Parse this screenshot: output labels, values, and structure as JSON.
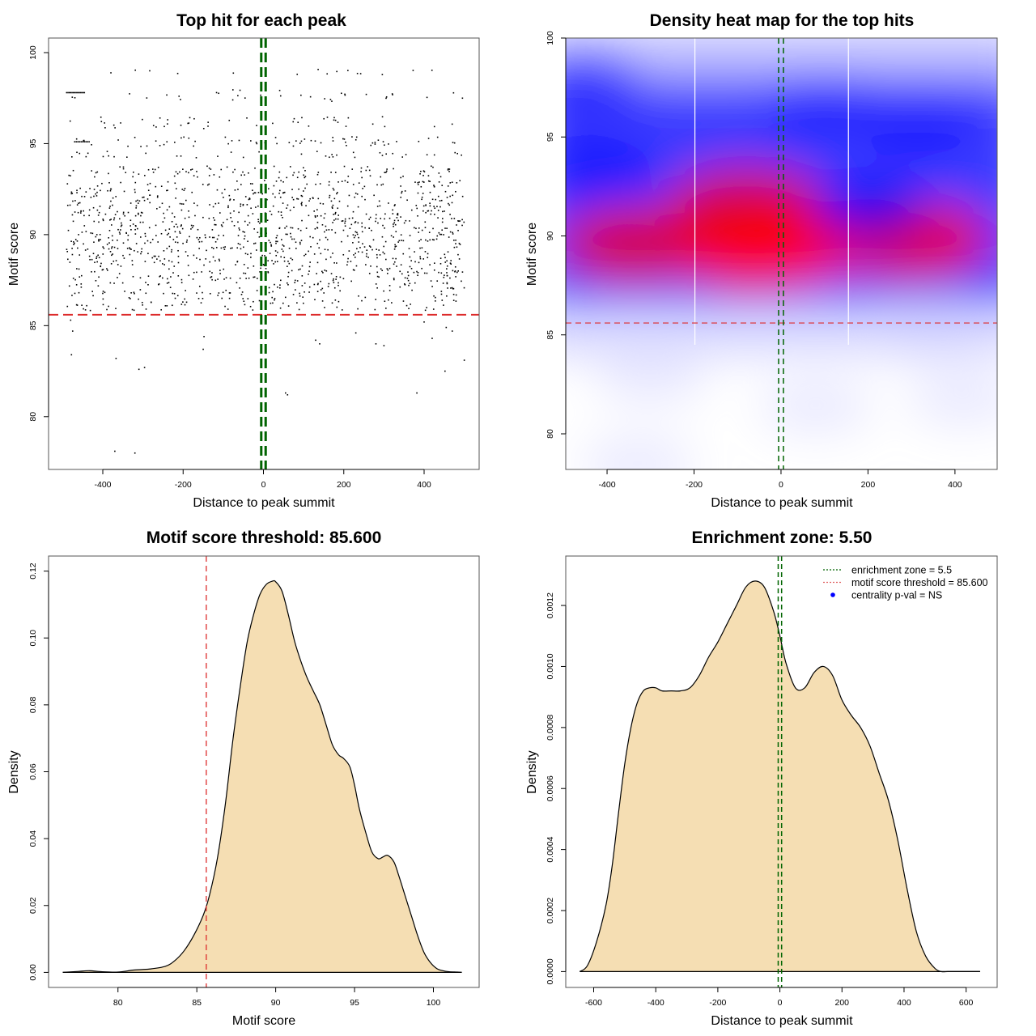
{
  "chart_data": [
    {
      "id": "scatter",
      "type": "scatter",
      "title": "Top hit for each peak",
      "xlabel": "Distance to peak summit",
      "ylabel": "Motif score",
      "xlim": [
        -535,
        537
      ],
      "ylim": [
        77.1,
        100.8
      ],
      "xticks": [
        -400,
        -200,
        0,
        200,
        400
      ],
      "xtick_labels": [
        "-400",
        "-200",
        "0",
        "200",
        "400"
      ],
      "yticks": [
        80,
        85,
        90,
        95,
        100
      ],
      "ytick_labels": [
        "80",
        "85",
        "90",
        "95",
        "100"
      ],
      "grid": false,
      "point_color": "#000000",
      "threshold_line": {
        "axis": "y",
        "value": 85.6,
        "color": "#dd2b2b",
        "style": "dashed"
      },
      "enrichment_lines": {
        "axis": "x",
        "values": [
          -5.5,
          5.5
        ],
        "color": "#006400",
        "style": "dashed"
      },
      "score_levels": [
        98.9,
        97.8,
        97.5,
        96.3,
        96.0,
        95.2,
        95.0,
        94.4,
        93.6,
        93.3,
        92.8,
        92.4,
        92.0,
        91.6,
        91.2,
        90.8,
        90.4,
        90.0,
        89.6,
        89.2,
        88.8,
        88.4,
        88.0,
        87.6,
        87.2,
        86.8,
        86.4,
        86.0
      ],
      "x_range_of_points": [
        -490,
        500
      ],
      "outliers": [
        {
          "x": -480,
          "y": 85.3
        },
        {
          "x": -475,
          "y": 84.7
        },
        {
          "x": -478,
          "y": 83.4
        },
        {
          "x": -367,
          "y": 83.2
        },
        {
          "x": -310,
          "y": 82.6
        },
        {
          "x": -296,
          "y": 82.7
        },
        {
          "x": -150,
          "y": 83.7
        },
        {
          "x": -148,
          "y": 84.4
        },
        {
          "x": 55,
          "y": 81.3
        },
        {
          "x": 60,
          "y": 81.2
        },
        {
          "x": 280,
          "y": 84.0
        },
        {
          "x": 300,
          "y": 83.9
        },
        {
          "x": 382,
          "y": 81.3
        },
        {
          "x": 452,
          "y": 82.5
        },
        {
          "x": 500,
          "y": 83.1
        },
        {
          "x": -370,
          "y": 78.1
        },
        {
          "x": -320,
          "y": 78.0
        },
        {
          "x": 130,
          "y": 84.2
        },
        {
          "x": 140,
          "y": 84.0
        },
        {
          "x": 420,
          "y": 84.3
        },
        {
          "x": 455,
          "y": 84.9
        },
        {
          "x": 470,
          "y": 84.7
        },
        {
          "x": 400,
          "y": 85.2
        },
        {
          "x": 230,
          "y": 84.6
        }
      ]
    },
    {
      "id": "heatmap",
      "type": "heatmap",
      "title": "Density heat map for the top hits",
      "xlabel": "Distance to peak summit",
      "ylabel": "Motif score",
      "xlim": [
        -495,
        497
      ],
      "ylim": [
        78.2,
        100
      ],
      "xticks": [
        -400,
        -200,
        0,
        200,
        400
      ],
      "xtick_labels": [
        "-400",
        "-200",
        "0",
        "200",
        "400"
      ],
      "yticks": [
        80,
        85,
        90,
        95,
        100
      ],
      "ytick_labels": [
        "80",
        "85",
        "90",
        "95",
        "100"
      ],
      "colormap": [
        "#ffffff",
        "#0000ff",
        "#ff0000"
      ],
      "white_vertical_lines": [
        -198,
        155
      ],
      "threshold_line": {
        "axis": "y",
        "value": 85.6,
        "color": "#dd2b2b",
        "style": "dashed"
      },
      "enrichment_lines": {
        "axis": "x",
        "values": [
          -5.5,
          5.5
        ],
        "color": "#006400",
        "style": "dashed"
      },
      "density_peaks": [
        {
          "x": 10,
          "y": 89.6,
          "intensity": 1.0
        },
        {
          "x": -60,
          "y": 89.2,
          "intensity": 0.8
        },
        {
          "x": 300,
          "y": 89.8,
          "intensity": 0.75
        },
        {
          "x": -330,
          "y": 89.6,
          "intensity": 0.65
        },
        {
          "x": -80,
          "y": 91.6,
          "intensity": 0.6
        },
        {
          "x": 200,
          "y": 91.3,
          "intensity": 0.55
        },
        {
          "x": -420,
          "y": 93.5,
          "intensity": 0.45
        },
        {
          "x": -460,
          "y": 97.8,
          "intensity": 0.35
        },
        {
          "x": 100,
          "y": 96.5,
          "intensity": 0.3
        },
        {
          "x": 320,
          "y": 95.5,
          "intensity": 0.3
        },
        {
          "x": 350,
          "y": 85.2,
          "intensity": 0.15
        },
        {
          "x": -300,
          "y": 82.8,
          "intensity": 0.05
        },
        {
          "x": 80,
          "y": 81.4,
          "intensity": 0.05
        },
        {
          "x": 420,
          "y": 81.8,
          "intensity": 0.04
        },
        {
          "x": -330,
          "y": 78.5,
          "intensity": 0.04
        }
      ]
    },
    {
      "id": "score-density",
      "type": "area",
      "title": "Motif score threshold: 85.600",
      "xlabel": "Motif score",
      "ylabel": "Density",
      "xlim": [
        75.6,
        102.9
      ],
      "ylim": [
        -0.0045,
        0.1245
      ],
      "xticks": [
        80,
        85,
        90,
        95,
        100
      ],
      "xtick_labels": [
        "80",
        "85",
        "90",
        "95",
        "100"
      ],
      "yticks": [
        0.0,
        0.02,
        0.04,
        0.06,
        0.08,
        0.1,
        0.12
      ],
      "ytick_labels": [
        "0.00",
        "0.02",
        "0.04",
        "0.06",
        "0.08",
        "0.10",
        "0.12"
      ],
      "fill_color": "#f5deb3",
      "threshold_line": {
        "axis": "x",
        "value": 85.6,
        "color": "#dd2b2b",
        "style": "dashed"
      },
      "x": [
        76.5,
        77.5,
        78.2,
        79.0,
        80.0,
        81.0,
        82.0,
        83.0,
        83.6,
        84.2,
        84.8,
        85.4,
        85.8,
        86.3,
        86.8,
        87.3,
        87.8,
        88.2,
        88.6,
        89.0,
        89.4,
        89.8,
        90.0,
        90.4,
        90.8,
        91.2,
        91.6,
        92.0,
        92.4,
        92.8,
        93.2,
        93.6,
        94.0,
        94.3,
        94.7,
        95.0,
        95.3,
        95.7,
        96.1,
        96.5,
        96.8,
        97.1,
        97.5,
        97.8,
        98.2,
        98.6,
        99.0,
        99.4,
        99.8,
        100.2,
        100.6,
        101.0,
        101.5,
        101.8
      ],
      "y": [
        0.0,
        0.0003,
        0.0005,
        0.0002,
        0.0001,
        0.0007,
        0.001,
        0.0018,
        0.0035,
        0.0065,
        0.011,
        0.017,
        0.023,
        0.034,
        0.05,
        0.07,
        0.087,
        0.099,
        0.107,
        0.113,
        0.116,
        0.117,
        0.1168,
        0.114,
        0.107,
        0.099,
        0.093,
        0.088,
        0.084,
        0.08,
        0.074,
        0.068,
        0.065,
        0.064,
        0.0615,
        0.056,
        0.049,
        0.042,
        0.036,
        0.034,
        0.0345,
        0.035,
        0.033,
        0.029,
        0.023,
        0.017,
        0.011,
        0.006,
        0.003,
        0.0012,
        0.0005,
        0.0002,
        0.0001,
        0.0
      ]
    },
    {
      "id": "distance-density",
      "type": "area",
      "title": "Enrichment zone: 5.50",
      "xlabel": "Distance to peak summit",
      "ylabel": "Density",
      "xlim": [
        -690,
        700
      ],
      "ylim": [
        -5.2e-05,
        0.001362
      ],
      "xticks": [
        -600,
        -400,
        -200,
        0,
        200,
        400,
        600
      ],
      "xtick_labels": [
        "-600",
        "-400",
        "-200",
        "0",
        "200",
        "400",
        "600"
      ],
      "yticks": [
        0.0,
        0.0002,
        0.0004,
        0.0006,
        0.0008,
        0.001,
        0.0012
      ],
      "ytick_labels": [
        "0.0000",
        "0.0002",
        "0.0004",
        "0.0006",
        "0.0008",
        "0.0010",
        "0.0012"
      ],
      "fill_color": "#f5deb3",
      "enrichment_lines": {
        "axis": "x",
        "values": [
          -5.5,
          5.5
        ],
        "color": "#006400",
        "style": "dashed"
      },
      "x": [
        -645,
        -620,
        -590,
        -560,
        -540,
        -520,
        -500,
        -480,
        -460,
        -440,
        -420,
        -400,
        -380,
        -350,
        -320,
        -290,
        -260,
        -230,
        -200,
        -170,
        -140,
        -110,
        -80,
        -50,
        -20,
        0,
        20,
        50,
        80,
        110,
        140,
        170,
        200,
        230,
        260,
        290,
        320,
        350,
        380,
        410,
        440,
        470,
        500,
        520,
        540,
        560,
        590,
        620,
        645
      ],
      "y": [
        0.0,
        2e-05,
        0.0001,
        0.00022,
        0.00035,
        0.00052,
        0.00068,
        0.0008,
        0.00088,
        0.00092,
        0.00093,
        0.00093,
        0.00092,
        0.00092,
        0.00092,
        0.00093,
        0.00097,
        0.00103,
        0.00108,
        0.00114,
        0.0012,
        0.00126,
        0.00128,
        0.00126,
        0.00118,
        0.0011,
        0.00101,
        0.00093,
        0.00093,
        0.00098,
        0.001,
        0.00097,
        0.00089,
        0.00084,
        0.0008,
        0.00074,
        0.00065,
        0.00056,
        0.00043,
        0.00027,
        0.00013,
        5e-05,
        1e-05,
        0.0,
        0.0,
        0.0,
        0.0,
        0.0,
        0.0
      ],
      "legend": {
        "position": "top-right",
        "entries": [
          {
            "label": "enrichment zone = 5.5",
            "color": "#006400",
            "marker": "dotted-line"
          },
          {
            "label": "motif score threshold = 85.600",
            "color": "#e06060",
            "marker": "dotted-line"
          },
          {
            "label": "centrality p-val = NS",
            "color": "#0000ff",
            "marker": "dot"
          }
        ]
      }
    }
  ]
}
